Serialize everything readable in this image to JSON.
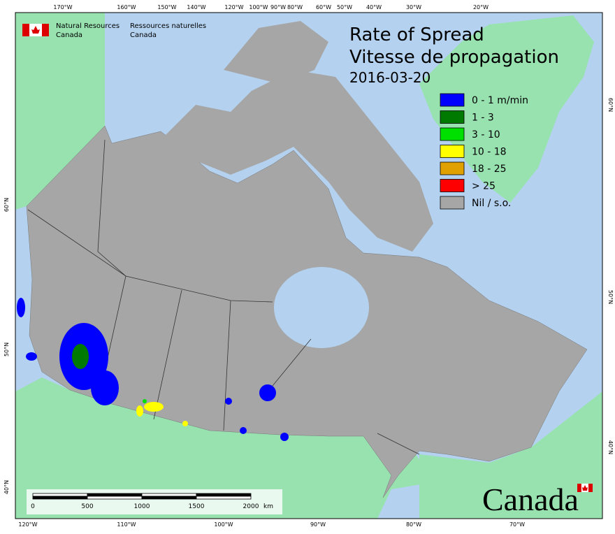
{
  "header": {
    "agency_en": [
      "Natural Resources",
      "Canada"
    ],
    "agency_fr": [
      "Ressources naturelles",
      "Canada"
    ]
  },
  "title": {
    "line1": "Rate of Spread",
    "line2": "Vitesse de propagation",
    "date": "2016-03-20"
  },
  "legend": [
    {
      "label": "0 - 1 m/min",
      "color": "#0000ff"
    },
    {
      "label": "1 - 3",
      "color": "#007a00"
    },
    {
      "label": "3 - 10",
      "color": "#00e000"
    },
    {
      "label": "10 - 18",
      "color": "#ffff00"
    },
    {
      "label": "18 - 25",
      "color": "#e0a000"
    },
    {
      "label": "> 25",
      "color": "#ff0000"
    },
    {
      "label": "Nil / s.o.",
      "color": "#a6a6a6"
    }
  ],
  "graticule": {
    "top": [
      "170°W",
      "160°W",
      "150°W",
      "140°W",
      "120°W",
      "100°W",
      "90°W",
      "80°W",
      "60°W",
      "50°W",
      "40°W",
      "30°W",
      "20°W"
    ],
    "bottom": [
      "120°W",
      "110°W",
      "100°W",
      "90°W",
      "80°W",
      "70°W"
    ],
    "left": [
      "60°N",
      "50°N",
      "40°N"
    ],
    "right": [
      "60°N",
      "50°N",
      "40°N"
    ]
  },
  "scale_bar": {
    "labels": [
      "0",
      "500",
      "1000",
      "1500",
      "2000"
    ],
    "unit": "km"
  },
  "wordmark": "Canada"
}
